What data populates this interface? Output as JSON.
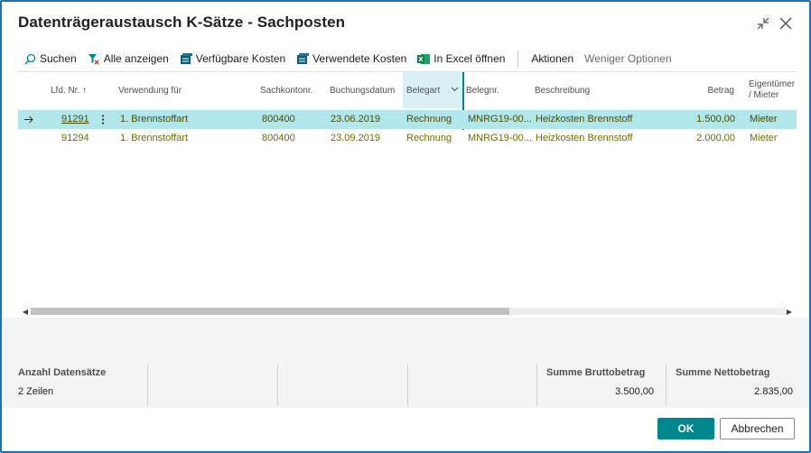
{
  "window": {
    "title": "Datenträgeraustausch K-Sätze - Sachposten"
  },
  "toolbar": {
    "search": "Suchen",
    "show_all": "Alle anzeigen",
    "available_costs": "Verfügbare Kosten",
    "used_costs": "Verwendete Kosten",
    "open_excel": "In Excel öffnen",
    "actions": "Aktionen",
    "fewer_options": "Weniger Optionen"
  },
  "grid": {
    "columns": {
      "lfd_nr": "Lfd. Nr. ↑",
      "verwendung": "Verwendung für",
      "sachkonto": "Sachkontonr.",
      "buchungsdatum": "Buchungsdatum",
      "belegart": "Belegart",
      "belegnr": "Belegnr.",
      "beschreibung": "Beschreibung",
      "betrag": "Betrag",
      "eigentuemer_1": "Eigentümer",
      "eigentuemer_2": "/ Mieter"
    },
    "rows": [
      {
        "lfd_nr": "91291",
        "verwendung": "1. Brennstoffart",
        "sachkonto": "800400",
        "buchungsdatum": "23.06.2019",
        "belegart": "Rechnung",
        "belegnr": "MNRG19-00...",
        "beschreibung": "Heizkosten Brennstoff",
        "betrag": "1.500,00",
        "eigentuemer": "Mieter"
      },
      {
        "lfd_nr": "91294",
        "verwendung": "1. Brennstoffart",
        "sachkonto": "800400",
        "buchungsdatum": "23.09.2019",
        "belegart": "Rechnung",
        "belegnr": "MNRG19-00...",
        "beschreibung": "Heizkosten Brennstoff",
        "betrag": "2.000,00",
        "eigentuemer": "Mieter"
      }
    ]
  },
  "summary": {
    "count_label": "Anzahl Datensätze",
    "count_value": "2 Zeilen",
    "gross_label": "Summe Bruttobetrag",
    "gross_value": "3.500,00",
    "net_label": "Summe Nettobetrag",
    "net_value": "2.835,00"
  },
  "buttons": {
    "ok": "OK",
    "cancel": "Abbrechen"
  },
  "colors": {
    "accent": "#00868d",
    "frame_border": "#1e73b8",
    "selected_row": "#b1e6ea"
  }
}
